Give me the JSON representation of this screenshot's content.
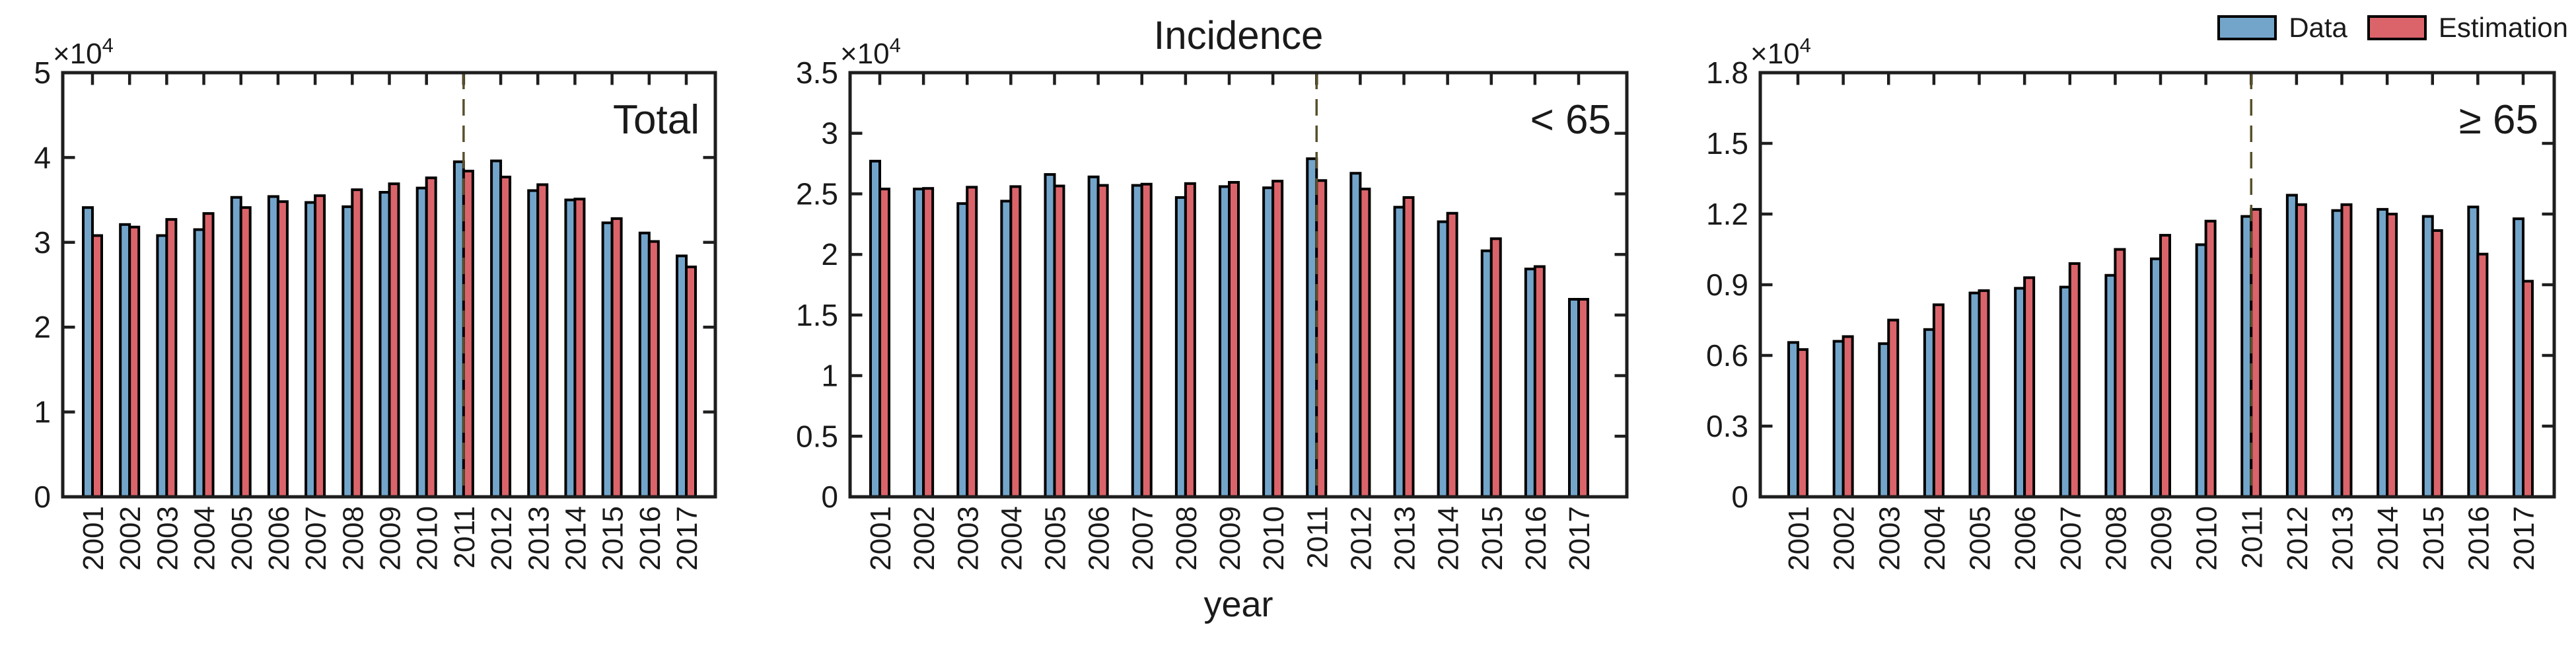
{
  "figure": {
    "title": "Incidence",
    "xlabel": "year",
    "legend": {
      "data_label": "Data",
      "estimation_label": "Estimation"
    },
    "colors": {
      "data_fill": "#73A5CB",
      "estimation_fill": "#DB646B",
      "bar_edge": "#000000",
      "axis": "#1E1E1E",
      "dashed_line": "#59502B",
      "text": "#1A1A1A",
      "background": "#FFFFFF"
    },
    "dashed_line_year": "2011"
  },
  "years": [
    "2001",
    "2002",
    "2003",
    "2004",
    "2005",
    "2006",
    "2007",
    "2008",
    "2009",
    "2010",
    "2011",
    "2012",
    "2013",
    "2014",
    "2015",
    "2016",
    "2017"
  ],
  "chart_data": [
    {
      "type": "bar",
      "panel_label": "Total",
      "title": "",
      "xlabel": "",
      "ylabel": "",
      "y_exponent_base": "×10",
      "y_exponent_power": "4",
      "ylim": [
        0,
        50000
      ],
      "ytick_labels": [
        "5",
        "4",
        "3",
        "2",
        "1",
        "0"
      ],
      "grid": false,
      "legend_position": "none",
      "dashed_line_x": "2011",
      "series": [
        {
          "name": "Data",
          "values": [
            34100,
            32100,
            30800,
            31500,
            35300,
            35400,
            34700,
            34200,
            35900,
            36400,
            39500,
            39600,
            36100,
            35000,
            32300,
            31100,
            28400
          ]
        },
        {
          "name": "Estimation",
          "values": [
            30800,
            31800,
            32700,
            33400,
            34100,
            34800,
            35500,
            36200,
            36900,
            37600,
            38400,
            37700,
            36800,
            35100,
            32800,
            30100,
            27100
          ]
        }
      ]
    },
    {
      "type": "bar",
      "panel_label": "< 65",
      "title": "Incidence",
      "xlabel": "year",
      "ylabel": "",
      "y_exponent_base": "×10",
      "y_exponent_power": "4",
      "ylim": [
        0,
        35000
      ],
      "ytick_labels": [
        "3.5",
        "3",
        "2.5",
        "2",
        "1.5",
        "1",
        "0.5",
        "0"
      ],
      "grid": false,
      "legend_position": "none",
      "dashed_line_x": "2011",
      "series": [
        {
          "name": "Data",
          "values": [
            27700,
            25400,
            24200,
            24400,
            26600,
            26400,
            25700,
            24700,
            25600,
            25500,
            27900,
            26700,
            23900,
            22700,
            20300,
            18800,
            16300
          ]
        },
        {
          "name": "Estimation",
          "values": [
            25400,
            25450,
            25550,
            25600,
            25650,
            25700,
            25800,
            25850,
            25950,
            26050,
            26100,
            25400,
            24700,
            23400,
            21300,
            19000,
            16300
          ]
        }
      ]
    },
    {
      "type": "bar",
      "panel_label": "≥ 65",
      "title": "",
      "xlabel": "",
      "ylabel": "",
      "y_exponent_base": "×10",
      "y_exponent_power": "4",
      "ylim": [
        0,
        18000
      ],
      "ytick_labels": [
        "1.8",
        "1.5",
        "1.2",
        "0.9",
        "0.6",
        "0.3",
        "0"
      ],
      "grid": false,
      "legend_position": "top-right",
      "dashed_line_x": "2011",
      "series": [
        {
          "name": "Data",
          "values": [
            6550,
            6600,
            6500,
            7100,
            8650,
            8850,
            8900,
            9400,
            10100,
            10700,
            11900,
            12800,
            12150,
            12200,
            11900,
            12300,
            11800
          ]
        },
        {
          "name": "Estimation",
          "values": [
            6250,
            6800,
            7500,
            8150,
            8750,
            9300,
            9900,
            10500,
            11100,
            11700,
            12200,
            12400,
            12400,
            12000,
            11300,
            10300,
            9150
          ]
        }
      ]
    }
  ]
}
